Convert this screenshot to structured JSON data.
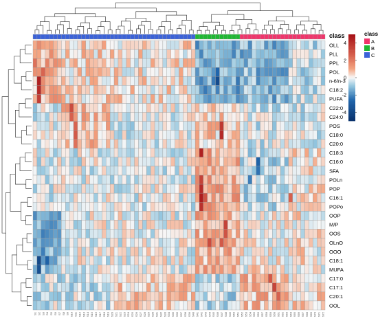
{
  "chart_data": {
    "type": "heatmap",
    "title": "",
    "xlabel": "",
    "ylabel": "",
    "class_annotation_label": "class",
    "color_scale": {
      "min": -5,
      "max": 5,
      "ticks": [
        4,
        2,
        0,
        -2,
        -4
      ],
      "low_color": "#08306b",
      "mid_color": "#f7f7f7",
      "high_color": "#a50f15"
    },
    "legend": {
      "title": "class",
      "items": [
        {
          "label": "A",
          "color": "#f0356b"
        },
        {
          "label": "B",
          "color": "#1fb833"
        },
        {
          "label": "C",
          "color": "#3b62d8"
        }
      ]
    },
    "rows": [
      "OLL",
      "PLL",
      "PPL",
      "POL",
      "n-6/n-3",
      "C18:2",
      "PUFA",
      "C22:0",
      "C24:0",
      "POS",
      "C18:0",
      "C20:0",
      "C18:3",
      "C16:0",
      "SFA",
      "POLn",
      "POP",
      "C16:1",
      "POPo",
      "OOP",
      "M/P",
      "OOS",
      "OLnO",
      "OOO",
      "C18:1",
      "MUFA",
      "C17:0",
      "C17:1",
      "C20:1",
      "OOL"
    ],
    "n_columns": 72,
    "column_classes": [
      "C",
      "C",
      "C",
      "C",
      "C",
      "C",
      "C",
      "C",
      "C",
      "C",
      "C",
      "C",
      "C",
      "C",
      "C",
      "C",
      "C",
      "C",
      "C",
      "C",
      "C",
      "C",
      "C",
      "C",
      "C",
      "C",
      "C",
      "C",
      "C",
      "C",
      "C",
      "C",
      "C",
      "C",
      "C",
      "C",
      "C",
      "C",
      "C",
      "C",
      "B",
      "B",
      "B",
      "B",
      "B",
      "B",
      "B",
      "B",
      "B",
      "B",
      "B",
      "A",
      "A",
      "A",
      "A",
      "A",
      "A",
      "A",
      "A",
      "A",
      "A",
      "A",
      "A",
      "A",
      "A",
      "A",
      "A",
      "A",
      "A",
      "A",
      "A",
      "A"
    ],
    "blocks": [
      {
        "cols": [
          0,
          6
        ],
        "rows": [
          0,
          6
        ],
        "value": 0.9
      },
      {
        "cols": [
          7,
          18
        ],
        "rows": [
          0,
          6
        ],
        "value": 0.4
      },
      {
        "cols": [
          19,
          39
        ],
        "rows": [
          0,
          6
        ],
        "value": 0.2
      },
      {
        "cols": [
          40,
          50
        ],
        "rows": [
          0,
          6
        ],
        "value": -1.4
      },
      {
        "cols": [
          51,
          62
        ],
        "rows": [
          0,
          6
        ],
        "value": -1.2
      },
      {
        "cols": [
          63,
          71
        ],
        "rows": [
          0,
          6
        ],
        "value": -0.5
      },
      {
        "cols": [
          0,
          6
        ],
        "rows": [
          7,
          11
        ],
        "value": -0.3
      },
      {
        "cols": [
          7,
          18
        ],
        "rows": [
          7,
          11
        ],
        "value": 0.7
      },
      {
        "cols": [
          19,
          39
        ],
        "rows": [
          7,
          11
        ],
        "value": -0.2
      },
      {
        "cols": [
          40,
          50
        ],
        "rows": [
          7,
          11
        ],
        "value": 0.5
      },
      {
        "cols": [
          51,
          71
        ],
        "rows": [
          7,
          11
        ],
        "value": -0.3
      },
      {
        "cols": [
          0,
          39
        ],
        "rows": [
          12,
          18
        ],
        "value": -0.2
      },
      {
        "cols": [
          40,
          50
        ],
        "rows": [
          12,
          18
        ],
        "value": 1.0
      },
      {
        "cols": [
          51,
          62
        ],
        "rows": [
          12,
          18
        ],
        "value": -0.6
      },
      {
        "cols": [
          63,
          71
        ],
        "rows": [
          12,
          18
        ],
        "value": 0.1
      },
      {
        "cols": [
          0,
          6
        ],
        "rows": [
          19,
          25
        ],
        "value": -1.3
      },
      {
        "cols": [
          7,
          39
        ],
        "rows": [
          19,
          25
        ],
        "value": -0.1
      },
      {
        "cols": [
          40,
          50
        ],
        "rows": [
          19,
          25
        ],
        "value": 0.9
      },
      {
        "cols": [
          51,
          71
        ],
        "rows": [
          19,
          25
        ],
        "value": 0.1
      },
      {
        "cols": [
          0,
          18
        ],
        "rows": [
          26,
          29
        ],
        "value": -0.4
      },
      {
        "cols": [
          19,
          39
        ],
        "rows": [
          26,
          29
        ],
        "value": 0.5
      },
      {
        "cols": [
          40,
          50
        ],
        "rows": [
          26,
          29
        ],
        "value": -0.6
      },
      {
        "cols": [
          51,
          62
        ],
        "rows": [
          26,
          29
        ],
        "value": 0.8
      },
      {
        "cols": [
          63,
          71
        ],
        "rows": [
          26,
          29
        ],
        "value": 0.3
      }
    ],
    "hotspots": [
      {
        "row": 4,
        "col": 1,
        "value": 4.5
      },
      {
        "row": 5,
        "col": 1,
        "value": 4.2
      },
      {
        "row": 6,
        "col": 1,
        "value": 3.6
      },
      {
        "row": 3,
        "col": 2,
        "value": 2.5
      },
      {
        "row": 2,
        "col": 0,
        "value": 2.2
      },
      {
        "row": 7,
        "col": 9,
        "value": 3.2
      },
      {
        "row": 8,
        "col": 9,
        "value": 2.6
      },
      {
        "row": 9,
        "col": 10,
        "value": 2.5
      },
      {
        "row": 10,
        "col": 10,
        "value": 2.8
      },
      {
        "row": 11,
        "col": 10,
        "value": 2.2
      },
      {
        "row": 12,
        "col": 41,
        "value": 4.5
      },
      {
        "row": 15,
        "col": 41,
        "value": 3.5
      },
      {
        "row": 16,
        "col": 41,
        "value": 4.2
      },
      {
        "row": 17,
        "col": 41,
        "value": 4.6
      },
      {
        "row": 18,
        "col": 41,
        "value": 4.0
      },
      {
        "row": 17,
        "col": 42,
        "value": 3.0
      },
      {
        "row": 9,
        "col": 46,
        "value": 3.8
      },
      {
        "row": 10,
        "col": 46,
        "value": 4.2
      },
      {
        "row": 20,
        "col": 47,
        "value": 3.5
      },
      {
        "row": 21,
        "col": 47,
        "value": 3.0
      },
      {
        "row": 22,
        "col": 46,
        "value": 2.8
      },
      {
        "row": 22,
        "col": 43,
        "value": 3.2
      },
      {
        "row": 4,
        "col": 45,
        "value": -3.8
      },
      {
        "row": 3,
        "col": 45,
        "value": -2.6
      },
      {
        "row": 24,
        "col": 1,
        "value": -3.9
      },
      {
        "row": 25,
        "col": 1,
        "value": -3.6
      },
      {
        "row": 24,
        "col": 3,
        "value": -2.8
      },
      {
        "row": 23,
        "col": 2,
        "value": -2.2
      },
      {
        "row": 13,
        "col": 55,
        "value": -2.8
      },
      {
        "row": 14,
        "col": 55,
        "value": -2.4
      },
      {
        "row": 27,
        "col": 59,
        "value": 3.4
      },
      {
        "row": 26,
        "col": 58,
        "value": 2.8
      },
      {
        "row": 28,
        "col": 60,
        "value": 2.6
      },
      {
        "row": 17,
        "col": 63,
        "value": 2.6
      },
      {
        "row": 15,
        "col": 53,
        "value": -2.2
      },
      {
        "row": 0,
        "col": 53,
        "value": -2.0
      }
    ],
    "noise_seed": 20240611,
    "noise_amplitude": 0.9
  }
}
